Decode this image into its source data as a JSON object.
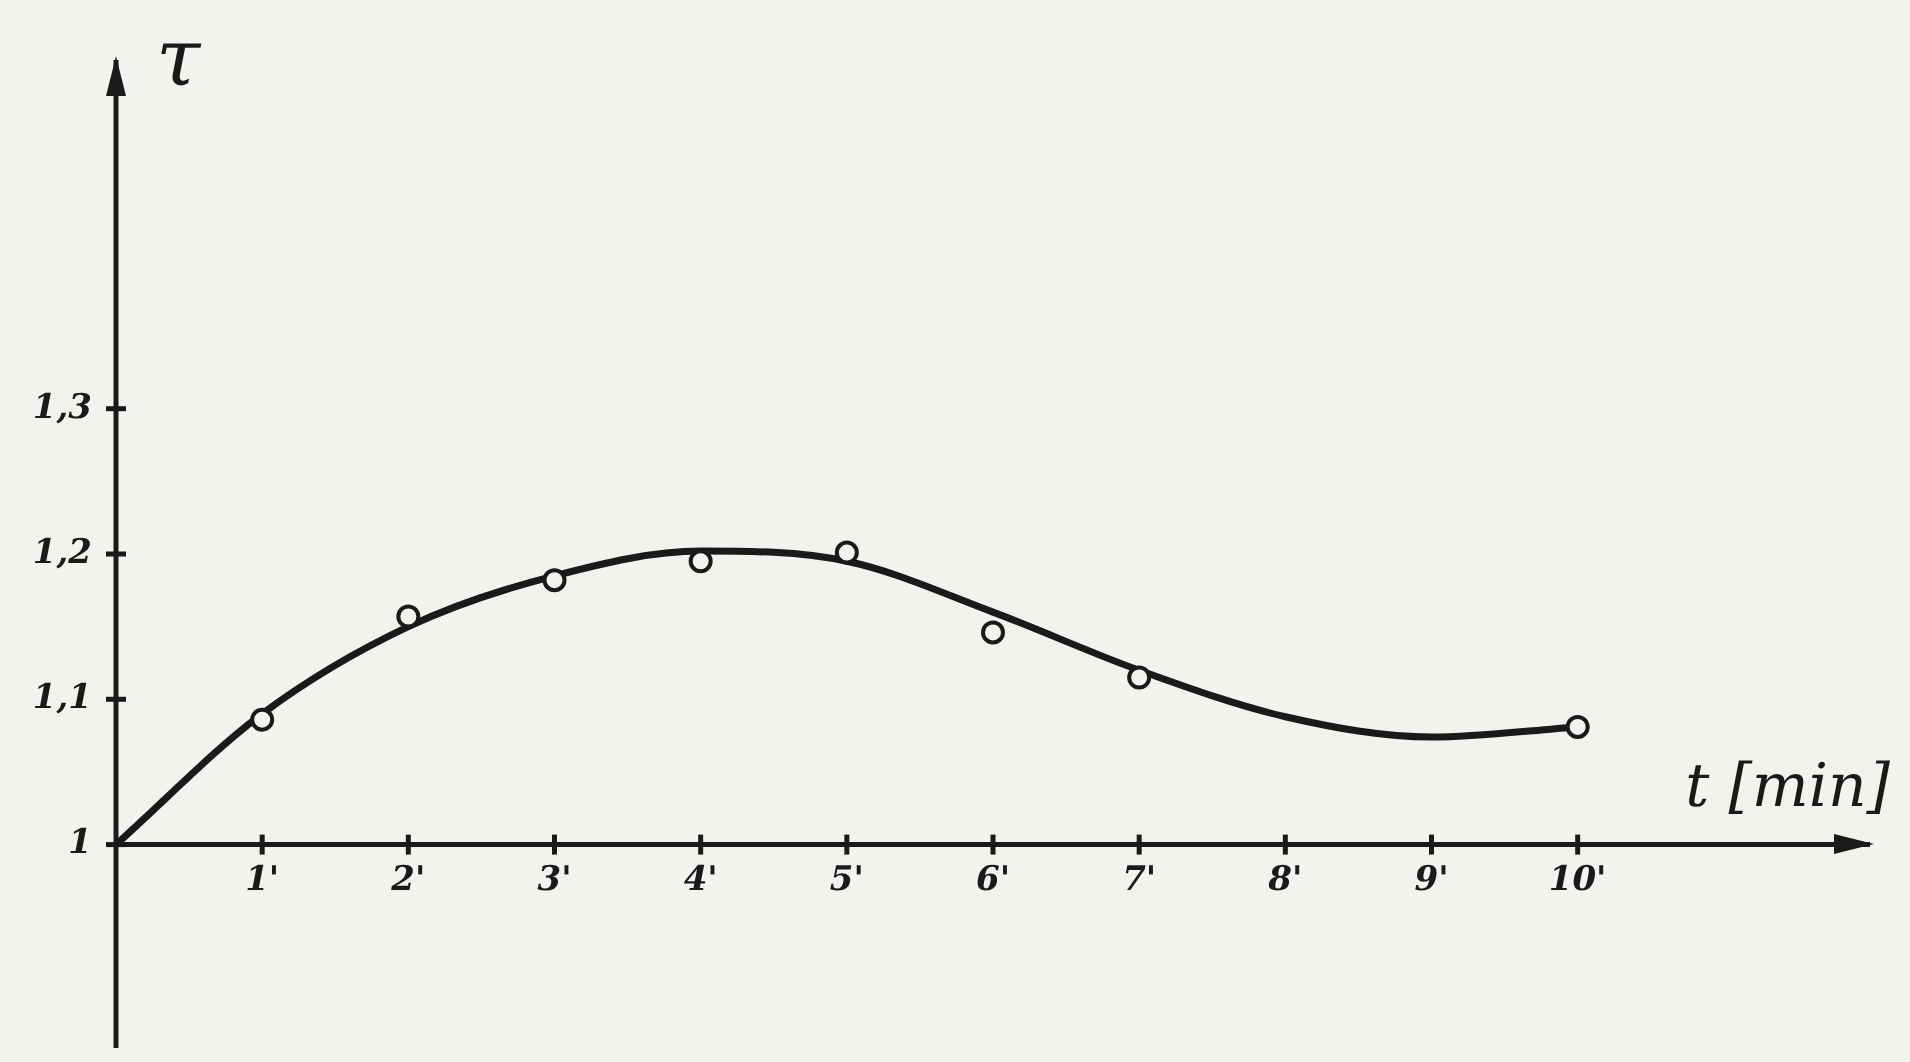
{
  "chart_data": {
    "type": "scatter",
    "xlabel": "t [min]",
    "ylabel": "τ",
    "xlim": [
      0,
      12
    ],
    "ylim": [
      0.86,
      1.54
    ],
    "xticks": [
      {
        "value": 1,
        "label": "1'"
      },
      {
        "value": 2,
        "label": "2'"
      },
      {
        "value": 3,
        "label": "3'"
      },
      {
        "value": 4,
        "label": "4'"
      },
      {
        "value": 5,
        "label": "5'"
      },
      {
        "value": 6,
        "label": "6'"
      },
      {
        "value": 7,
        "label": "7'"
      },
      {
        "value": 8,
        "label": "8'"
      },
      {
        "value": 9,
        "label": "9'"
      },
      {
        "value": 10,
        "label": "10'"
      }
    ],
    "yticks": [
      {
        "value": 1,
        "label": "1"
      },
      {
        "value": 1.1,
        "label": "1,1"
      },
      {
        "value": 1.2,
        "label": "1,2"
      },
      {
        "value": 1.3,
        "label": "1,3"
      }
    ],
    "legend": false,
    "series": [
      {
        "marker": "circle",
        "color": "#1a1a1a",
        "x": [
          1,
          2,
          3,
          4,
          5,
          6,
          7,
          10
        ],
        "values": [
          1.086,
          1.157,
          1.182,
          1.195,
          1.201,
          1.146,
          1.115,
          1.081
        ]
      },
      {
        "type": "line",
        "marker": "none",
        "line_style": "solid",
        "color": "#1a1a1a",
        "x": [
          0,
          1,
          2,
          3,
          4,
          5,
          6,
          7,
          8,
          9,
          10
        ],
        "values": [
          1,
          1.09,
          1.15,
          1.185,
          1.202,
          1.195,
          1.16,
          1.12,
          1.088,
          1.074,
          1.081
        ]
      }
    ]
  }
}
